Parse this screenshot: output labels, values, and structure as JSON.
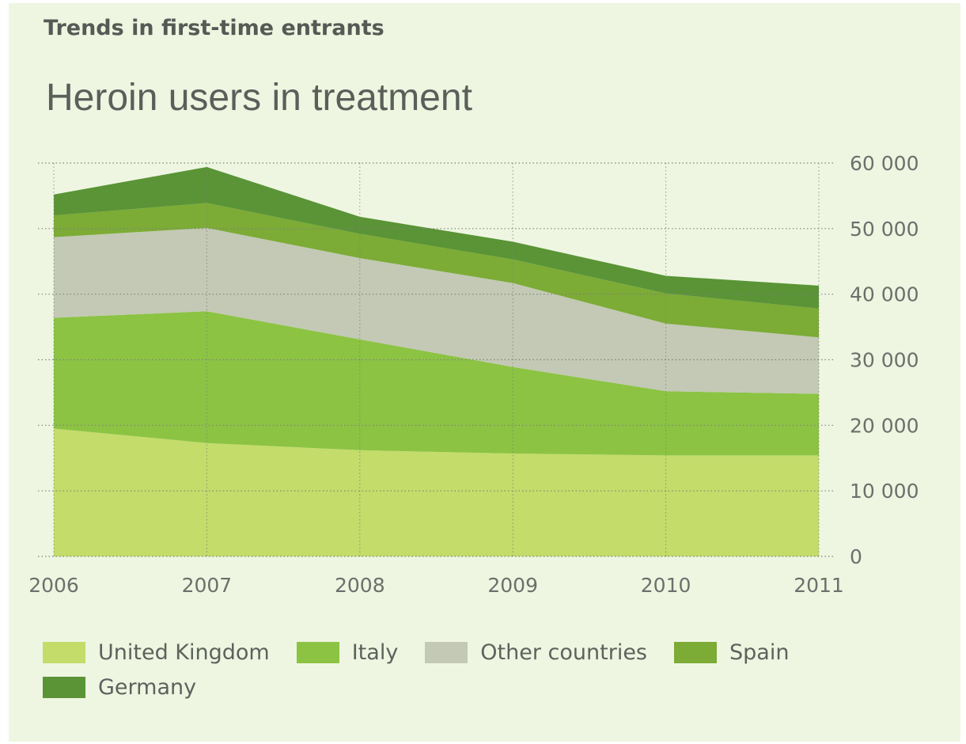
{
  "header": {
    "subtitle": "Trends in first-time entrants",
    "title": "Heroin users in treatment"
  },
  "chart_data": {
    "type": "area",
    "stacked": true,
    "title": "Heroin users in treatment",
    "subtitle": "Trends in first-time entrants",
    "x": [
      "2006",
      "2007",
      "2008",
      "2009",
      "2010",
      "2011"
    ],
    "ylim": [
      0,
      60000
    ],
    "yticks": [
      0,
      10000,
      20000,
      30000,
      40000,
      50000,
      60000
    ],
    "ytick_labels": [
      "0",
      "10 000",
      "20 000",
      "30 000",
      "40 000",
      "50 000",
      "60 000"
    ],
    "y_axis_position": "right",
    "grid": true,
    "legend_position": "bottom",
    "series": [
      {
        "name": "United Kingdom",
        "color": "#c3dc6a",
        "values": [
          19500,
          17300,
          16200,
          15700,
          15400,
          15400
        ]
      },
      {
        "name": "Italy",
        "color": "#8cc343",
        "values": [
          16900,
          20100,
          16900,
          13200,
          9800,
          9400
        ]
      },
      {
        "name": "Other countries",
        "color": "#c3c9b5",
        "values": [
          12300,
          12700,
          12400,
          12800,
          10300,
          8600
        ]
      },
      {
        "name": "Spain",
        "color": "#7cab36",
        "values": [
          3300,
          3800,
          3700,
          3600,
          4600,
          4400
        ]
      },
      {
        "name": "Germany",
        "color": "#5a9436",
        "values": [
          3200,
          5500,
          2600,
          2700,
          2700,
          3500
        ]
      }
    ]
  }
}
